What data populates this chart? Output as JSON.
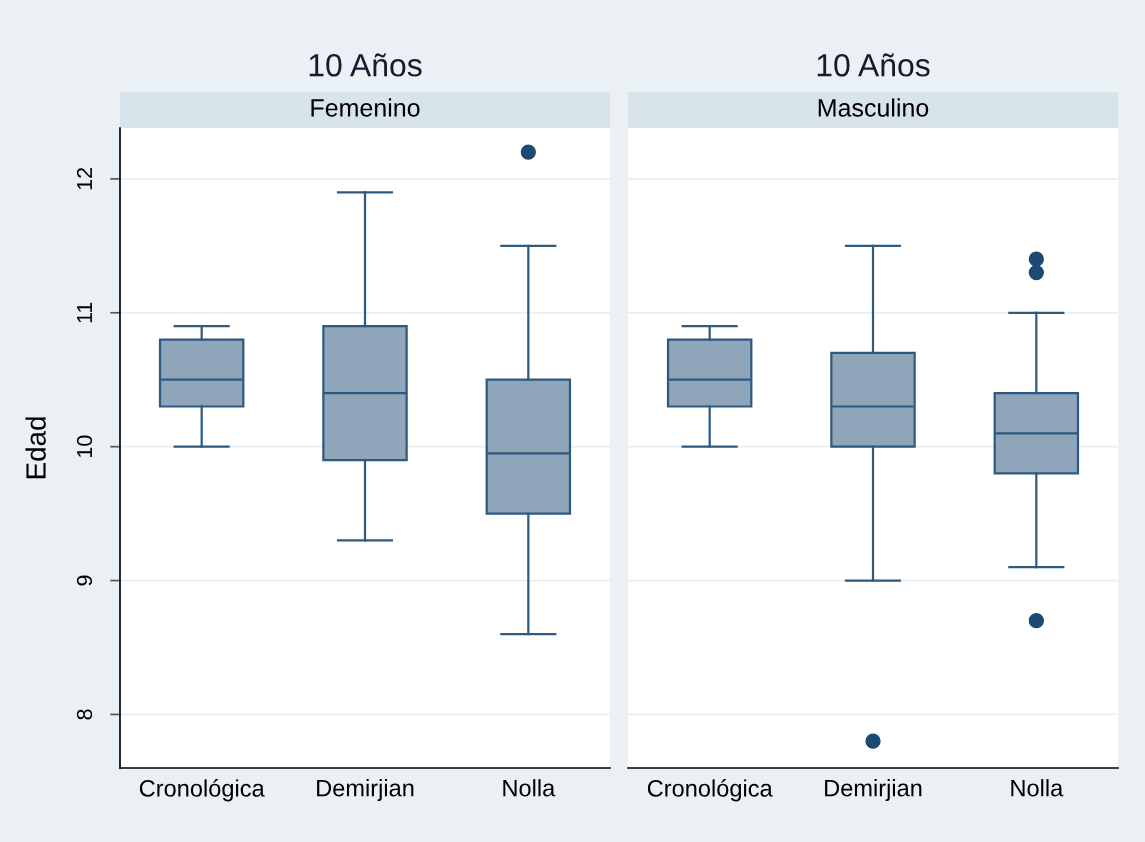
{
  "chart_data": [
    {
      "type": "box",
      "title": "10 Años",
      "subtitle": "Femenino",
      "ylabel": "Edad",
      "categories": [
        "Cronológica",
        "Demirjian",
        "Nolla"
      ],
      "ylim": [
        7.6,
        12.38
      ],
      "yticks": [
        8,
        9,
        10,
        11,
        12
      ],
      "grid": "y",
      "series": [
        {
          "color": "#8fa5ba",
          "boxes": [
            {
              "low": 10.0,
              "q1": 10.3,
              "median": 10.5,
              "q3": 10.8,
              "high": 10.9
            },
            {
              "low": 9.3,
              "q1": 9.9,
              "median": 10.4,
              "q3": 10.9,
              "high": 11.9
            },
            {
              "low": 8.6,
              "q1": 9.5,
              "median": 9.95,
              "q3": 10.5,
              "high": 11.5,
              "outliers": [
                12.2
              ]
            }
          ]
        }
      ]
    },
    {
      "type": "box",
      "title": "10 Años",
      "subtitle": "Masculino",
      "categories": [
        "Cronológica",
        "Demirjian",
        "Nolla"
      ],
      "ylim": [
        7.6,
        12.38
      ],
      "yticks": [
        8,
        9,
        10,
        11,
        12
      ],
      "grid": "y",
      "tick_labels": "x",
      "series": [
        {
          "color": "#8fa5ba",
          "boxes": [
            {
              "low": 10.0,
              "q1": 10.3,
              "median": 10.5,
              "q3": 10.8,
              "high": 10.9
            },
            {
              "low": 9.0,
              "q1": 10.0,
              "median": 10.3,
              "q3": 10.7,
              "high": 11.5,
              "outliers": [
                7.8
              ]
            },
            {
              "low": 9.1,
              "q1": 9.8,
              "median": 10.1,
              "q3": 10.4,
              "high": 11.0,
              "outliers": [
                11.4,
                11.3,
                8.7
              ]
            }
          ]
        }
      ]
    }
  ]
}
